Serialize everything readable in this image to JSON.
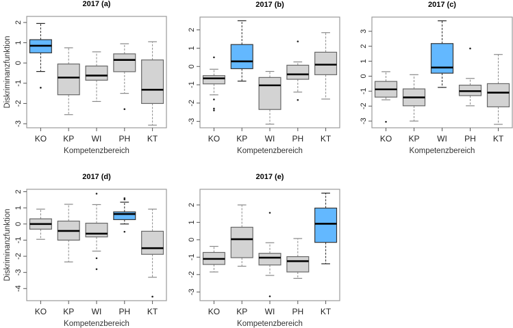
{
  "chart_data": [
    {
      "type": "box",
      "title": "2017 (a)",
      "xlabel": "Kompetenzbereich",
      "ylabel": "Diskriminanzfunktion",
      "ylim": [
        -3.2,
        2.3
      ],
      "yticks": [
        -3,
        -2,
        -1,
        0,
        1,
        2
      ],
      "categories": [
        "KO",
        "KP",
        "WI",
        "PH",
        "KT"
      ],
      "highlight": "KO",
      "boxes": [
        {
          "name": "KO",
          "whisker_low": -0.42,
          "q1": 0.5,
          "median": 0.85,
          "q3": 1.15,
          "whisker_high": 1.95,
          "outliers": [
            -1.22
          ]
        },
        {
          "name": "KP",
          "whisker_low": -2.55,
          "q1": -1.57,
          "median": -0.72,
          "q3": -0.05,
          "whisker_high": 0.75,
          "outliers": []
        },
        {
          "name": "WI",
          "whisker_low": -1.9,
          "q1": -0.85,
          "median": -0.62,
          "q3": -0.15,
          "whisker_high": 0.55,
          "outliers": []
        },
        {
          "name": "PH",
          "whisker_low": -1.5,
          "q1": -0.43,
          "median": 0.15,
          "q3": 0.45,
          "whisker_high": 0.95,
          "outliers": [
            -2.28
          ]
        },
        {
          "name": "KT",
          "whisker_low": -3.07,
          "q1": -2.0,
          "median": -1.32,
          "q3": 0.15,
          "whisker_high": 1.05,
          "outliers": []
        }
      ]
    },
    {
      "type": "box",
      "title": "2017 (b)",
      "xlabel": "Kompetenzbereich",
      "ylabel": "",
      "ylim": [
        -3.35,
        2.7
      ],
      "yticks": [
        -3,
        -2,
        -1,
        0,
        1,
        2
      ],
      "categories": [
        "KO",
        "KP",
        "WI",
        "PH",
        "KT"
      ],
      "highlight": "KP",
      "boxes": [
        {
          "name": "KO",
          "whisker_low": -1.55,
          "q1": -0.95,
          "median": -0.65,
          "q3": -0.5,
          "whisker_high": -0.15,
          "outliers": [
            0.5,
            -1.8,
            -2.3,
            -2.4
          ]
        },
        {
          "name": "KP",
          "whisker_low": -0.8,
          "q1": -0.12,
          "median": 0.28,
          "q3": 1.2,
          "whisker_high": 2.5,
          "outliers": []
        },
        {
          "name": "WI",
          "whisker_low": -3.15,
          "q1": -2.35,
          "median": -1.03,
          "q3": -0.6,
          "whisker_high": -0.27,
          "outliers": []
        },
        {
          "name": "PH",
          "whisker_low": -1.4,
          "q1": -0.7,
          "median": -0.43,
          "q3": 0.07,
          "whisker_high": 0.25,
          "outliers": [
            1.37,
            -1.83
          ]
        },
        {
          "name": "KT",
          "whisker_low": -1.78,
          "q1": -0.45,
          "median": 0.1,
          "q3": 0.78,
          "whisker_high": 1.85,
          "outliers": []
        }
      ]
    },
    {
      "type": "box",
      "title": "2017 (c)",
      "xlabel": "Kompetenzbereich",
      "ylabel": "",
      "ylim": [
        -3.45,
        3.95
      ],
      "yticks": [
        -3,
        -2,
        -1,
        0,
        1,
        2,
        3
      ],
      "categories": [
        "KO",
        "KP",
        "WI",
        "PH",
        "KT"
      ],
      "highlight": "WI",
      "boxes": [
        {
          "name": "KO",
          "whisker_low": -1.58,
          "q1": -1.4,
          "median": -0.88,
          "q3": -0.35,
          "whisker_high": 0.3,
          "outliers": [
            -3.05
          ]
        },
        {
          "name": "KP",
          "whisker_low": -3.0,
          "q1": -1.98,
          "median": -1.42,
          "q3": -0.85,
          "whisker_high": 0.1,
          "outliers": []
        },
        {
          "name": "WI",
          "whisker_low": -0.75,
          "q1": 0.2,
          "median": 0.58,
          "q3": 2.18,
          "whisker_high": 3.7,
          "outliers": []
        },
        {
          "name": "PH",
          "whisker_low": -1.98,
          "q1": -1.3,
          "median": -1.0,
          "q3": -0.6,
          "whisker_high": -0.15,
          "outliers": [
            1.85
          ]
        },
        {
          "name": "KT",
          "whisker_low": -3.22,
          "q1": -2.05,
          "median": -1.1,
          "q3": -0.5,
          "whisker_high": 1.45,
          "outliers": []
        }
      ]
    },
    {
      "type": "box",
      "title": "2017 (d)",
      "xlabel": "Kompetenzbereich",
      "ylabel": "Diskriminanzfunktion",
      "ylim": [
        -4.75,
        2.15
      ],
      "yticks": [
        -4,
        -3,
        -2,
        -1,
        0,
        1,
        2
      ],
      "categories": [
        "KO",
        "KP",
        "WI",
        "PH",
        "KT"
      ],
      "highlight": "PH",
      "boxes": [
        {
          "name": "KO",
          "whisker_low": -0.95,
          "q1": -0.32,
          "median": 0.0,
          "q3": 0.32,
          "whisker_high": 0.92,
          "outliers": []
        },
        {
          "name": "KP",
          "whisker_low": -2.35,
          "q1": -1.0,
          "median": -0.43,
          "q3": 0.18,
          "whisker_high": 1.22,
          "outliers": []
        },
        {
          "name": "WI",
          "whisker_low": -1.68,
          "q1": -0.8,
          "median": -0.6,
          "q3": 0.05,
          "whisker_high": 1.2,
          "outliers": [
            1.88,
            -2.12,
            -2.8
          ]
        },
        {
          "name": "PH",
          "whisker_low": 0.0,
          "q1": 0.27,
          "median": 0.62,
          "q3": 0.75,
          "whisker_high": 1.35,
          "outliers": [
            1.6,
            1.52,
            -0.48
          ]
        },
        {
          "name": "KT",
          "whisker_low": -3.3,
          "q1": -1.88,
          "median": -1.5,
          "q3": -0.45,
          "whisker_high": 0.92,
          "outliers": [
            -4.5
          ]
        }
      ]
    },
    {
      "type": "box",
      "title": "2017 (e)",
      "xlabel": "Kompetenzbereich",
      "ylabel": "",
      "ylim": [
        -3.5,
        2.9
      ],
      "yticks": [
        -3,
        -2,
        -1,
        0,
        1,
        2
      ],
      "categories": [
        "KO",
        "KP",
        "WI",
        "PH",
        "KT"
      ],
      "highlight": "KT",
      "boxes": [
        {
          "name": "KO",
          "whisker_low": -1.85,
          "q1": -1.42,
          "median": -1.1,
          "q3": -0.73,
          "whisker_high": -0.38,
          "outliers": []
        },
        {
          "name": "KP",
          "whisker_low": -1.52,
          "q1": -1.03,
          "median": 0.03,
          "q3": 0.72,
          "whisker_high": 2.0,
          "outliers": []
        },
        {
          "name": "WI",
          "whisker_low": -2.05,
          "q1": -1.45,
          "median": -1.03,
          "q3": -0.78,
          "whisker_high": -0.17,
          "outliers": [
            1.55,
            -3.25
          ]
        },
        {
          "name": "PH",
          "whisker_low": -2.22,
          "q1": -1.85,
          "median": -1.23,
          "q3": -0.97,
          "whisker_high": 0.07,
          "outliers": []
        },
        {
          "name": "KT",
          "whisker_low": -1.38,
          "q1": -0.15,
          "median": 0.92,
          "q3": 1.82,
          "whisker_high": 2.68,
          "outliers": []
        }
      ]
    }
  ],
  "colors": {
    "highlight_fill": "#63B8FF",
    "box_fill": "#D3D3D3",
    "box_border": "#555555",
    "median": "#000000",
    "frame": "#999999"
  }
}
